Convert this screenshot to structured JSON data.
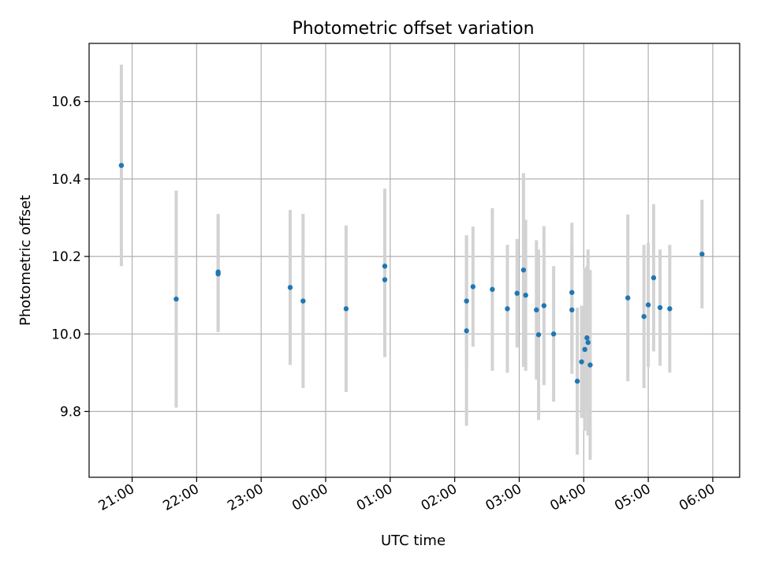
{
  "chart_data": {
    "type": "scatter",
    "title": "Photometric offset variation",
    "xlabel": "UTC time",
    "ylabel": "Photometric offset",
    "x_axis_kind": "time",
    "xlim": [
      "20:20",
      "06:25"
    ],
    "ylim": [
      9.63,
      10.75
    ],
    "yticks": [
      9.8,
      10.0,
      10.2,
      10.4,
      10.6
    ],
    "ytick_labels": [
      "9.8",
      "10.0",
      "10.2",
      "10.4",
      "10.6"
    ],
    "xticks": [
      "21:00",
      "22:00",
      "23:00",
      "00:00",
      "01:00",
      "02:00",
      "03:00",
      "04:00",
      "05:00",
      "06:00"
    ],
    "grid": true,
    "colors": {
      "point": "#1f77b4",
      "errorbar": "#d3d3d3",
      "grid": "#b0b0b0"
    },
    "points": [
      {
        "t": "20:50",
        "y": 10.435,
        "err": 0.26
      },
      {
        "t": "21:41",
        "y": 10.09,
        "err": 0.28
      },
      {
        "t": "22:20",
        "y": 10.16,
        "err": 0.15
      },
      {
        "t": "22:20",
        "y": 10.155,
        "err": 0.15
      },
      {
        "t": "23:27",
        "y": 10.12,
        "err": 0.2
      },
      {
        "t": "23:39",
        "y": 10.085,
        "err": 0.225
      },
      {
        "t": "00:19",
        "y": 10.065,
        "err": 0.215
      },
      {
        "t": "00:55",
        "y": 10.175,
        "err": 0.2
      },
      {
        "t": "00:55",
        "y": 10.14,
        "err": 0.2
      },
      {
        "t": "02:11",
        "y": 10.085,
        "err": 0.17
      },
      {
        "t": "02:11",
        "y": 10.008,
        "err": 0.245
      },
      {
        "t": "02:17",
        "y": 10.122,
        "err": 0.155
      },
      {
        "t": "02:35",
        "y": 10.115,
        "err": 0.21
      },
      {
        "t": "02:49",
        "y": 10.065,
        "err": 0.165
      },
      {
        "t": "02:58",
        "y": 10.105,
        "err": 0.14
      },
      {
        "t": "03:04",
        "y": 10.165,
        "err": 0.25
      },
      {
        "t": "03:06",
        "y": 10.1,
        "err": 0.195
      },
      {
        "t": "03:16",
        "y": 10.062,
        "err": 0.18
      },
      {
        "t": "03:18",
        "y": 9.998,
        "err": 0.22
      },
      {
        "t": "03:23",
        "y": 10.073,
        "err": 0.205
      },
      {
        "t": "03:32",
        "y": 10.0,
        "err": 0.175
      },
      {
        "t": "03:49",
        "y": 10.107,
        "err": 0.18
      },
      {
        "t": "03:49",
        "y": 10.062,
        "err": 0.165
      },
      {
        "t": "03:54",
        "y": 9.878,
        "err": 0.19
      },
      {
        "t": "03:58",
        "y": 9.928,
        "err": 0.145
      },
      {
        "t": "04:01",
        "y": 9.96,
        "err": 0.21
      },
      {
        "t": "04:03",
        "y": 9.99,
        "err": 0.185
      },
      {
        "t": "04:04",
        "y": 9.978,
        "err": 0.24
      },
      {
        "t": "04:06",
        "y": 9.92,
        "err": 0.245
      },
      {
        "t": "04:41",
        "y": 10.093,
        "err": 0.215
      },
      {
        "t": "04:56",
        "y": 10.045,
        "err": 0.185
      },
      {
        "t": "05:00",
        "y": 10.075,
        "err": 0.16
      },
      {
        "t": "05:05",
        "y": 10.145,
        "err": 0.19
      },
      {
        "t": "05:11",
        "y": 10.068,
        "err": 0.15
      },
      {
        "t": "05:20",
        "y": 10.065,
        "err": 0.165
      },
      {
        "t": "05:50",
        "y": 10.206,
        "err": 0.14
      }
    ]
  }
}
